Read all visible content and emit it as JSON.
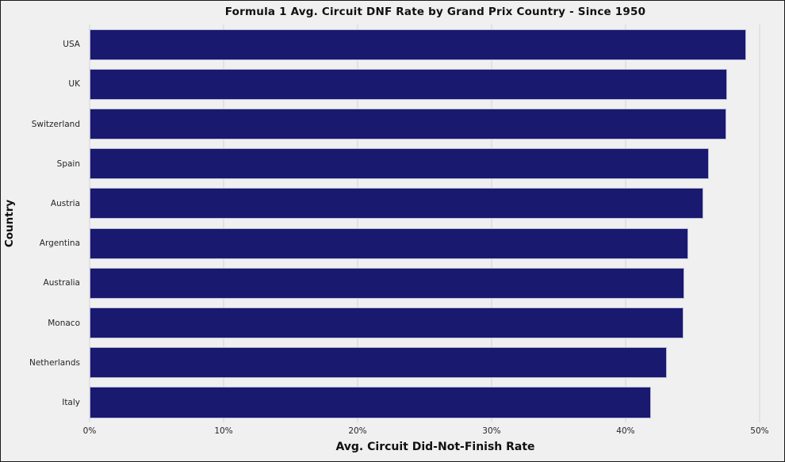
{
  "chart_data": {
    "type": "bar",
    "orientation": "horizontal",
    "title": "Formula 1 Avg. Circuit DNF Rate by Grand Prix Country - Since 1950",
    "xlabel": "Avg. Circuit Did-Not-Finish Rate",
    "ylabel": "Country",
    "categories": [
      "USA",
      "UK",
      "Switzerland",
      "Spain",
      "Austria",
      "Argentina",
      "Australia",
      "Monaco",
      "Netherlands",
      "Italy"
    ],
    "values": [
      49.0,
      47.6,
      47.5,
      46.2,
      45.8,
      44.7,
      44.4,
      44.3,
      43.1,
      41.9
    ],
    "unit": "%",
    "xlim": [
      0,
      51.6
    ],
    "xticks": [
      0,
      10,
      20,
      30,
      40,
      50
    ],
    "xtick_labels": [
      "0%",
      "10%",
      "20%",
      "30%",
      "40%",
      "50%"
    ],
    "grid": true,
    "legend": null,
    "colors": {
      "bar": "#191970",
      "bar_edge": "#b9bcd8",
      "background": "#f0f0f0",
      "gridline": "#e2e2e2",
      "text": "#111111"
    }
  }
}
